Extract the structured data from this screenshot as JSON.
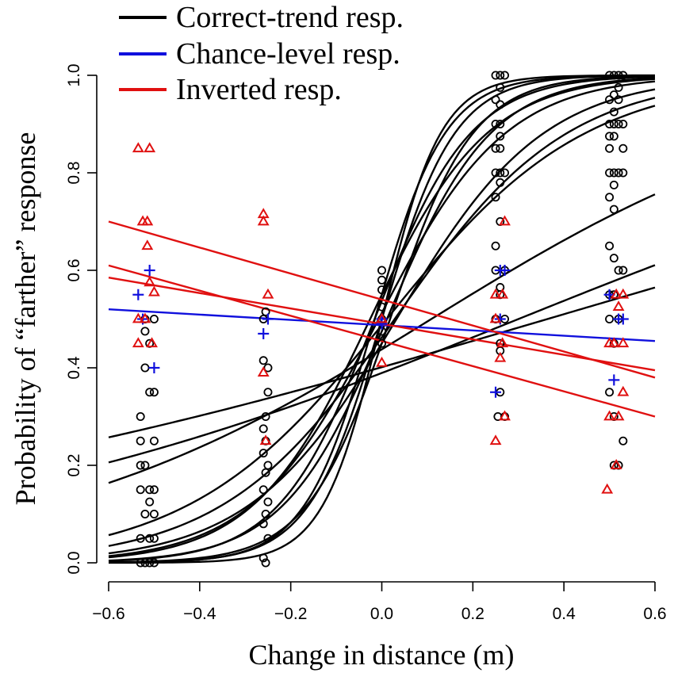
{
  "chart_data": {
    "type": "scatter",
    "title": "",
    "xlabel": "Change in distance (m)",
    "ylabel": "Probability of “farther” response",
    "xlim": [
      -0.6,
      0.6
    ],
    "ylim": [
      0.0,
      1.0
    ],
    "x_ticks": [
      "−0.6",
      "−0.4",
      "−0.2",
      "0.0",
      "0.2",
      "0.4",
      "0.6"
    ],
    "x_tick_values": [
      -0.6,
      -0.4,
      -0.2,
      0.0,
      0.2,
      0.4,
      0.6
    ],
    "y_ticks": [
      "0.0",
      "0.2",
      "0.4",
      "0.6",
      "0.8",
      "1.0"
    ],
    "y_tick_values": [
      0.0,
      0.2,
      0.4,
      0.6,
      0.8,
      1.0
    ],
    "legend": [
      {
        "label": "Correct-trend resp.",
        "color": "#000000"
      },
      {
        "label": "Chance-level resp.",
        "color": "#1010dd"
      },
      {
        "label": "Inverted resp.",
        "color": "#e01010"
      }
    ],
    "legend_position": "top-left",
    "series": [
      {
        "name": "Correct-trend resp.",
        "color": "#000000",
        "marker": "circle",
        "fit": "logistic",
        "curves": [
          {
            "b0": 0.0,
            "b1": 15.5
          },
          {
            "b0": 0.2,
            "b1": 13.0
          },
          {
            "b0": 0.0,
            "b1": 12.5
          },
          {
            "b0": -0.2,
            "b1": 11.0
          },
          {
            "b0": 0.15,
            "b1": 9.5
          },
          {
            "b0": -0.1,
            "b1": 8.8
          },
          {
            "b0": 0.2,
            "b1": 7.8
          },
          {
            "b0": 0.05,
            "b1": 7.2
          },
          {
            "b0": -0.2,
            "b1": 6.2
          },
          {
            "b0": -0.15,
            "b1": 5.3
          },
          {
            "b0": -0.05,
            "b1": 4.6
          },
          {
            "b0": -0.25,
            "b1": 2.3
          },
          {
            "b0": -0.45,
            "b1": 1.5
          },
          {
            "b0": -0.4,
            "b1": 1.1
          }
        ],
        "points": [
          [
            -0.53,
            0.0
          ],
          [
            -0.52,
            0.0
          ],
          [
            -0.51,
            0.0
          ],
          [
            -0.5,
            0.0
          ],
          [
            -0.53,
            0.05
          ],
          [
            -0.51,
            0.05
          ],
          [
            -0.5,
            0.05
          ],
          [
            -0.52,
            0.1
          ],
          [
            -0.5,
            0.1
          ],
          [
            -0.51,
            0.125
          ],
          [
            -0.53,
            0.15
          ],
          [
            -0.51,
            0.15
          ],
          [
            -0.5,
            0.15
          ],
          [
            -0.53,
            0.2
          ],
          [
            -0.52,
            0.2
          ],
          [
            -0.53,
            0.25
          ],
          [
            -0.5,
            0.25
          ],
          [
            -0.53,
            0.3
          ],
          [
            -0.51,
            0.35
          ],
          [
            -0.5,
            0.35
          ],
          [
            -0.52,
            0.4
          ],
          [
            -0.51,
            0.45
          ],
          [
            -0.52,
            0.475
          ],
          [
            -0.52,
            0.5
          ],
          [
            -0.5,
            0.5
          ],
          [
            -0.255,
            0.0
          ],
          [
            -0.26,
            0.01
          ],
          [
            -0.25,
            0.05
          ],
          [
            -0.26,
            0.08
          ],
          [
            -0.255,
            0.1
          ],
          [
            -0.25,
            0.125
          ],
          [
            -0.26,
            0.15
          ],
          [
            -0.255,
            0.185
          ],
          [
            -0.25,
            0.2
          ],
          [
            -0.26,
            0.225
          ],
          [
            -0.255,
            0.25
          ],
          [
            -0.26,
            0.275
          ],
          [
            -0.255,
            0.3
          ],
          [
            -0.25,
            0.35
          ],
          [
            -0.25,
            0.4
          ],
          [
            -0.26,
            0.415
          ],
          [
            -0.26,
            0.5
          ],
          [
            -0.255,
            0.515
          ],
          [
            0.0,
            0.45
          ],
          [
            0.0,
            0.475
          ],
          [
            0.0,
            0.5
          ],
          [
            0.0,
            0.525
          ],
          [
            0.0,
            0.56
          ],
          [
            0.0,
            0.58
          ],
          [
            0.0,
            0.6
          ],
          [
            0.255,
            0.3
          ],
          [
            0.27,
            0.3
          ],
          [
            0.26,
            0.35
          ],
          [
            0.26,
            0.435
          ],
          [
            0.26,
            0.45
          ],
          [
            0.25,
            0.5
          ],
          [
            0.27,
            0.5
          ],
          [
            0.26,
            0.55
          ],
          [
            0.26,
            0.565
          ],
          [
            0.25,
            0.6
          ],
          [
            0.27,
            0.6
          ],
          [
            0.25,
            0.65
          ],
          [
            0.26,
            0.7
          ],
          [
            0.25,
            0.75
          ],
          [
            0.26,
            0.78
          ],
          [
            0.25,
            0.8
          ],
          [
            0.26,
            0.8
          ],
          [
            0.27,
            0.8
          ],
          [
            0.25,
            0.85
          ],
          [
            0.26,
            0.85
          ],
          [
            0.26,
            0.875
          ],
          [
            0.25,
            0.9
          ],
          [
            0.26,
            0.9
          ],
          [
            0.25,
            0.95
          ],
          [
            0.26,
            0.94
          ],
          [
            0.26,
            0.975
          ],
          [
            0.25,
            1.0
          ],
          [
            0.26,
            1.0
          ],
          [
            0.27,
            1.0
          ],
          [
            0.5,
            0.35
          ],
          [
            0.51,
            0.3
          ],
          [
            0.51,
            0.2
          ],
          [
            0.52,
            0.2
          ],
          [
            0.53,
            0.25
          ],
          [
            0.51,
            0.45
          ],
          [
            0.5,
            0.5
          ],
          [
            0.51,
            0.55
          ],
          [
            0.52,
            0.5
          ],
          [
            0.5,
            0.55
          ],
          [
            0.52,
            0.6
          ],
          [
            0.53,
            0.6
          ],
          [
            0.51,
            0.625
          ],
          [
            0.5,
            0.65
          ],
          [
            0.51,
            0.725
          ],
          [
            0.5,
            0.75
          ],
          [
            0.51,
            0.775
          ],
          [
            0.5,
            0.8
          ],
          [
            0.51,
            0.8
          ],
          [
            0.52,
            0.8
          ],
          [
            0.53,
            0.8
          ],
          [
            0.5,
            0.85
          ],
          [
            0.53,
            0.85
          ],
          [
            0.5,
            0.875
          ],
          [
            0.51,
            0.875
          ],
          [
            0.5,
            0.9
          ],
          [
            0.51,
            0.9
          ],
          [
            0.52,
            0.9
          ],
          [
            0.53,
            0.9
          ],
          [
            0.51,
            0.925
          ],
          [
            0.5,
            0.95
          ],
          [
            0.51,
            0.96
          ],
          [
            0.52,
            0.95
          ],
          [
            0.52,
            0.975
          ],
          [
            0.5,
            1.0
          ],
          [
            0.51,
            1.0
          ],
          [
            0.52,
            1.0
          ],
          [
            0.53,
            1.0
          ]
        ]
      },
      {
        "name": "Chance-level resp.",
        "color": "#1010dd",
        "marker": "plus",
        "fit": "line",
        "lines": [
          {
            "y_at_xmin": 0.52,
            "y_at_xmax": 0.455
          }
        ],
        "points": [
          [
            -0.535,
            0.55
          ],
          [
            -0.51,
            0.6
          ],
          [
            -0.525,
            0.5
          ],
          [
            -0.5,
            0.4
          ],
          [
            -0.26,
            0.47
          ],
          [
            -0.25,
            0.5
          ],
          [
            0.0,
            0.49
          ],
          [
            0.0,
            0.5
          ],
          [
            0.25,
            0.35
          ],
          [
            0.26,
            0.6
          ],
          [
            0.27,
            0.6
          ],
          [
            0.26,
            0.5
          ],
          [
            0.5,
            0.55
          ],
          [
            0.51,
            0.375
          ],
          [
            0.53,
            0.5
          ],
          [
            0.52,
            0.5
          ]
        ]
      },
      {
        "name": "Inverted resp.",
        "color": "#e01010",
        "marker": "triangle",
        "fit": "line",
        "lines": [
          {
            "y_at_xmin": 0.7,
            "y_at_xmax": 0.38
          },
          {
            "y_at_xmin": 0.61,
            "y_at_xmax": 0.3
          },
          {
            "y_at_xmin": 0.585,
            "y_at_xmax": 0.395
          }
        ],
        "points": [
          [
            -0.535,
            0.85
          ],
          [
            -0.51,
            0.85
          ],
          [
            -0.525,
            0.7
          ],
          [
            -0.515,
            0.7
          ],
          [
            -0.515,
            0.65
          ],
          [
            -0.51,
            0.575
          ],
          [
            -0.5,
            0.555
          ],
          [
            -0.535,
            0.5
          ],
          [
            -0.52,
            0.5
          ],
          [
            -0.535,
            0.45
          ],
          [
            -0.505,
            0.45
          ],
          [
            -0.26,
            0.715
          ],
          [
            -0.26,
            0.7
          ],
          [
            -0.25,
            0.55
          ],
          [
            -0.26,
            0.39
          ],
          [
            -0.255,
            0.25
          ],
          [
            0.0,
            0.41
          ],
          [
            0.0,
            0.5
          ],
          [
            0.25,
            0.25
          ],
          [
            0.27,
            0.7
          ],
          [
            0.25,
            0.55
          ],
          [
            0.265,
            0.55
          ],
          [
            0.25,
            0.5
          ],
          [
            0.265,
            0.45
          ],
          [
            0.27,
            0.3
          ],
          [
            0.26,
            0.42
          ],
          [
            0.495,
            0.15
          ],
          [
            0.5,
            0.3
          ],
          [
            0.52,
            0.3
          ],
          [
            0.5,
            0.45
          ],
          [
            0.51,
            0.45
          ],
          [
            0.52,
            0.525
          ],
          [
            0.515,
            0.55
          ],
          [
            0.53,
            0.55
          ],
          [
            0.53,
            0.45
          ],
          [
            0.53,
            0.35
          ],
          [
            0.515,
            0.2
          ]
        ]
      }
    ]
  }
}
